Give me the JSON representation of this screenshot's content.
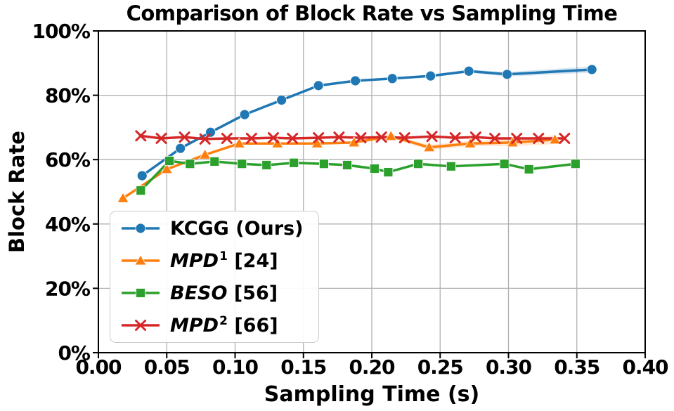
{
  "chart_data": {
    "type": "line",
    "title": "Comparison of Block Rate vs Sampling Time",
    "xlabel": "Sampling Time (s)",
    "ylabel": "Block Rate",
    "xlim": [
      0.0,
      0.4
    ],
    "ylim": [
      0,
      100
    ],
    "x_ticks": [
      0.0,
      0.05,
      0.1,
      0.15,
      0.2,
      0.25,
      0.3,
      0.35,
      0.4
    ],
    "x_tick_labels": [
      "0.00",
      "0.05",
      "0.10",
      "0.15",
      "0.20",
      "0.25",
      "0.30",
      "0.35",
      "0.40"
    ],
    "y_ticks": [
      0,
      20,
      40,
      60,
      80,
      100
    ],
    "y_tick_labels": [
      "0%",
      "20%",
      "40%",
      "60%",
      "80%",
      "100%"
    ],
    "grid": true,
    "grid_color": "#b0b0b0",
    "spine_color": "#000000",
    "legend_position": "lower left",
    "series": [
      {
        "key": "kcgg",
        "label_plain": "KCGG (Ours)",
        "legend": {
          "italic": "",
          "sup": "",
          "rest": "KCGG (Ours)"
        },
        "color": "#1f77b4",
        "marker": "circle",
        "x": [
          0.032,
          0.06,
          0.082,
          0.107,
          0.134,
          0.161,
          0.188,
          0.215,
          0.243,
          0.271,
          0.299,
          0.361
        ],
        "y": [
          55.0,
          63.5,
          68.5,
          74.0,
          78.5,
          83.0,
          84.5,
          85.2,
          86.0,
          87.5,
          86.5,
          88.0
        ],
        "ci": [
          0.4,
          0.4,
          0.4,
          0.4,
          0.4,
          0.4,
          0.4,
          0.4,
          0.4,
          0.5,
          0.7,
          1.0
        ]
      },
      {
        "key": "mpd1",
        "label_plain": "MPD¹ [24]",
        "legend": {
          "italic": "MPD",
          "sup": "1",
          "rest": " [24]"
        },
        "color": "#ff7f0e",
        "marker": "triangle",
        "x": [
          0.018,
          0.05,
          0.078,
          0.103,
          0.131,
          0.16,
          0.187,
          0.214,
          0.242,
          0.272,
          0.303,
          0.334
        ],
        "y": [
          48.0,
          57.0,
          61.5,
          65.0,
          65.0,
          65.0,
          65.3,
          67.3,
          63.8,
          65.0,
          65.3,
          66.2
        ],
        "ci": [
          0.3,
          0.3,
          0.3,
          0.3,
          0.3,
          0.3,
          0.4,
          0.5,
          0.8,
          0.8,
          1.1,
          1.4
        ]
      },
      {
        "key": "beso",
        "label_plain": "BESO [56]",
        "legend": {
          "italic": "BESO",
          "sup": "",
          "rest": " [56]"
        },
        "color": "#2ca02c",
        "marker": "square",
        "x": [
          0.031,
          0.052,
          0.067,
          0.085,
          0.105,
          0.123,
          0.143,
          0.165,
          0.182,
          0.202,
          0.212,
          0.234,
          0.258,
          0.297,
          0.315,
          0.349
        ],
        "y": [
          50.4,
          59.6,
          58.7,
          59.4,
          58.7,
          58.3,
          59.0,
          58.7,
          58.3,
          57.2,
          56.1,
          58.7,
          57.9,
          58.7,
          57.0,
          58.7
        ],
        "ci": []
      },
      {
        "key": "mpd2",
        "label_plain": "MPD² [66]",
        "legend": {
          "italic": "MPD",
          "sup": "2",
          "rest": " [66]"
        },
        "color": "#d62728",
        "marker": "x",
        "x": [
          0.031,
          0.046,
          0.063,
          0.078,
          0.094,
          0.112,
          0.128,
          0.142,
          0.161,
          0.176,
          0.192,
          0.207,
          0.224,
          0.244,
          0.261,
          0.276,
          0.29,
          0.306,
          0.322,
          0.341
        ],
        "y": [
          67.4,
          66.6,
          67.0,
          66.4,
          66.6,
          66.6,
          66.8,
          66.6,
          66.8,
          67.0,
          66.8,
          67.0,
          66.8,
          67.2,
          66.8,
          67.0,
          66.6,
          66.6,
          66.6,
          66.6
        ],
        "ci": []
      }
    ]
  }
}
